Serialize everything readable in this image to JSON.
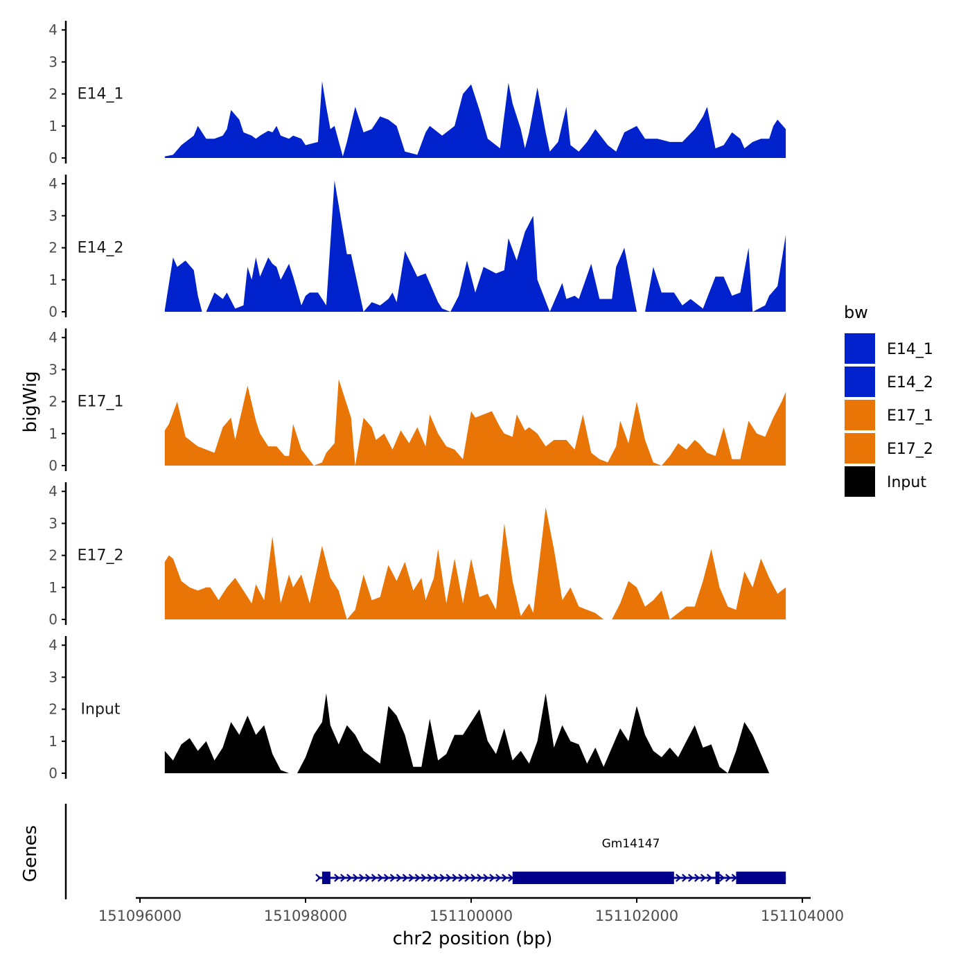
{
  "chart_data": {
    "type": "area",
    "title": "",
    "ylabel": "bigWig",
    "xlabel": "chr2 position (bp)",
    "xlim": [
      151095950,
      151104100
    ],
    "ylim": [
      0,
      4.2
    ],
    "y_ticks": [
      0,
      1,
      2,
      3,
      4
    ],
    "x_ticks": [
      151096000,
      151098000,
      151100000,
      151102000,
      151104000
    ],
    "x_tick_labels": [
      "151096000",
      "151098000",
      "151100000",
      "151102000",
      "151104000"
    ],
    "legend": {
      "title": "bw",
      "position": "right",
      "entries": [
        {
          "label": "E14_1",
          "color": "#0022cc"
        },
        {
          "label": "E14_2",
          "color": "#0022cc"
        },
        {
          "label": "E17_1",
          "color": "#e87505"
        },
        {
          "label": "E17_2",
          "color": "#e87505"
        },
        {
          "label": "Input",
          "color": "#000000"
        }
      ]
    },
    "series": [
      {
        "name": "E14_1",
        "color": "#0022cc",
        "x": [
          151096300,
          151096400,
          151096500,
          151096550,
          151096650,
          151096700,
          151096800,
          151096900,
          151097000,
          151097050,
          151097100,
          151097200,
          151097250,
          151097350,
          151097400,
          151097450,
          151097550,
          151097600,
          151097650,
          151097700,
          151097800,
          151097850,
          151097950,
          151098000,
          151098150,
          151098200,
          151098250,
          151098300,
          151098350,
          151098450,
          151098500,
          151098600,
          151098700,
          151098800,
          151098900,
          151099000,
          151099100,
          151099200,
          151099350,
          151099450,
          151099500,
          151099650,
          151099800,
          151099900,
          151100000,
          151100100,
          151100200,
          151100350,
          151100450,
          151100500,
          151100600,
          151100650,
          151100700,
          151100800,
          151100900,
          151100950,
          151101050,
          151101150,
          151101200,
          151101300,
          151101400,
          151101500,
          151101650,
          151101750,
          151101850,
          151102000,
          151102100,
          151102250,
          151102400,
          151102550,
          151102700,
          151102800,
          151102850,
          151102950,
          151103050,
          151103150,
          151103250,
          151103300,
          151103400,
          151103500,
          151103600,
          151103650,
          151103700,
          151103800
        ],
        "y": [
          0.05,
          0.1,
          0.4,
          0.5,
          0.7,
          1,
          0.6,
          0.6,
          0.7,
          0.9,
          1.5,
          1.2,
          0.8,
          0.7,
          0.6,
          0.7,
          0.85,
          0.8,
          1.0,
          0.7,
          0.6,
          0.7,
          0.6,
          0.4,
          0.5,
          2.4,
          1.6,
          0.9,
          1.0,
          0.05,
          0.5,
          1.6,
          0.8,
          0.9,
          1.3,
          1.2,
          1.0,
          0.2,
          0.1,
          0.8,
          1.0,
          0.7,
          1.0,
          2.0,
          2.3,
          1.5,
          0.6,
          0.3,
          2.35,
          1.7,
          0.9,
          0.3,
          0.8,
          2.2,
          0.8,
          0.2,
          0.5,
          1.6,
          0.4,
          0.2,
          0.5,
          0.9,
          0.4,
          0.2,
          0.8,
          1.0,
          0.6,
          0.6,
          0.5,
          0.5,
          0.9,
          1.3,
          1.6,
          0.3,
          0.4,
          0.8,
          0.6,
          0.3,
          0.5,
          0.6,
          0.6,
          1.0,
          1.2,
          0.9
        ]
      },
      {
        "name": "E14_2",
        "color": "#0022cc",
        "x": [
          151096300,
          151096400,
          151096450,
          151096550,
          151096650,
          151096700,
          151096750,
          151096800,
          151096900,
          151097000,
          151097050,
          151097150,
          151097250,
          151097300,
          151097350,
          151097400,
          151097450,
          151097550,
          151097600,
          151097650,
          151097700,
          151097800,
          151097850,
          151097950,
          151098000,
          151098050,
          151098150,
          151098200,
          151098250,
          151098350,
          151098500,
          151098550,
          151098700,
          151098800,
          151098900,
          151099000,
          151099050,
          151099100,
          151099200,
          151099350,
          151099450,
          151099600,
          151099650,
          151099750,
          151099850,
          151099950,
          151100050,
          151100150,
          151100300,
          151100400,
          151100450,
          151100550,
          151100650,
          151100750,
          151100800,
          151100950,
          151101100,
          151101150,
          151101250,
          151101300,
          151101450,
          151101550,
          151101700,
          151101750,
          151101850,
          151102000,
          151102100,
          151102200,
          151102300,
          151102450,
          151102550,
          151102650,
          151102800,
          151102950,
          151103050,
          151103150,
          151103250,
          151103350,
          151103400,
          151103550,
          151103600,
          151103700,
          151103800
        ],
        "y": [
          0.05,
          1.7,
          1.4,
          1.6,
          1.3,
          0.5,
          0.0,
          0.0,
          0.6,
          0.4,
          0.6,
          0.1,
          0.2,
          1.4,
          1.0,
          1.7,
          1.1,
          1.7,
          1.5,
          1.4,
          1.0,
          1.5,
          1.1,
          0.2,
          0.5,
          0.6,
          0.6,
          0.4,
          0.2,
          4.1,
          1.8,
          1.8,
          0.0,
          0.3,
          0.2,
          0.4,
          0.6,
          0.3,
          1.9,
          1.1,
          1.2,
          0.3,
          0.1,
          0.0,
          0.5,
          1.6,
          0.6,
          1.4,
          1.2,
          1.3,
          2.3,
          1.6,
          2.5,
          3.0,
          1.0,
          0.0,
          0.9,
          0.4,
          0.5,
          0.4,
          1.5,
          0.4,
          0.4,
          1.4,
          2.0,
          0.0,
          0.0,
          1.4,
          0.6,
          0.6,
          0.2,
          0.4,
          0.1,
          1.1,
          1.1,
          0.5,
          0.6,
          2.0,
          0.0,
          0.2,
          0.5,
          0.8,
          2.4
        ]
      },
      {
        "name": "E17_1",
        "color": "#e87505",
        "x": [
          151096300,
          151096350,
          151096450,
          151096550,
          151096650,
          151096700,
          151096800,
          151096900,
          151097000,
          151097100,
          151097150,
          151097300,
          151097400,
          151097450,
          151097550,
          151097650,
          151097750,
          151097800,
          151097850,
          151097950,
          151098100,
          151098200,
          151098250,
          151098350,
          151098400,
          151098550,
          151098600,
          151098700,
          151098800,
          151098850,
          151098950,
          151099050,
          151099150,
          151099250,
          151099350,
          151099450,
          151099500,
          151099600,
          151099700,
          151099800,
          151099900,
          151100000,
          151100050,
          151100150,
          151100250,
          151100350,
          151100400,
          151100500,
          151100550,
          151100650,
          151100700,
          151100800,
          151100900,
          151101000,
          151101050,
          151101150,
          151101250,
          151101350,
          151101450,
          151101550,
          151101650,
          151101750,
          151101800,
          151101900,
          151102000,
          151102100,
          151102200,
          151102300,
          151102400,
          151102500,
          151102600,
          151102700,
          151102750,
          151102850,
          151102950,
          151103050,
          151103150,
          151103250,
          151103350,
          151103450,
          151103550,
          151103650,
          151103750,
          151103800
        ],
        "y": [
          1.1,
          1.3,
          2.0,
          0.9,
          0.7,
          0.6,
          0.5,
          0.4,
          1.2,
          1.5,
          0.8,
          2.5,
          1.4,
          1.0,
          0.6,
          0.6,
          0.3,
          0.3,
          1.3,
          0.5,
          0.0,
          0.1,
          0.4,
          0.7,
          2.7,
          1.5,
          0.0,
          1.5,
          1.2,
          0.8,
          1.0,
          0.5,
          1.1,
          0.7,
          1.2,
          0.6,
          1.6,
          1.0,
          0.6,
          0.5,
          0.2,
          1.7,
          1.5,
          1.6,
          1.7,
          1.2,
          1.0,
          0.9,
          1.6,
          1.1,
          1.2,
          1.0,
          0.6,
          0.8,
          0.8,
          0.8,
          0.5,
          1.6,
          0.4,
          0.2,
          0.1,
          0.6,
          1.4,
          0.7,
          2.0,
          0.8,
          0.1,
          0.0,
          0.3,
          0.7,
          0.5,
          0.8,
          0.7,
          0.4,
          0.3,
          1.2,
          0.2,
          0.2,
          1.4,
          1.0,
          0.9,
          1.5,
          2.0,
          2.3
        ]
      },
      {
        "name": "E17_2",
        "color": "#e87505",
        "x": [
          151096300,
          151096350,
          151096400,
          151096500,
          151096600,
          151096700,
          151096800,
          151096850,
          151096950,
          151097050,
          151097150,
          151097250,
          151097350,
          151097400,
          151097500,
          151097600,
          151097700,
          151097800,
          151097850,
          151097950,
          151098050,
          151098200,
          151098300,
          151098400,
          151098500,
          151098600,
          151098700,
          151098800,
          151098900,
          151099000,
          151099100,
          151099200,
          151099300,
          151099400,
          151099450,
          151099550,
          151099600,
          151099700,
          151099800,
          151099900,
          151100000,
          151100100,
          151100200,
          151100300,
          151100400,
          151100500,
          151100600,
          151100700,
          151100750,
          151100900,
          151101000,
          151101100,
          151101200,
          151101300,
          151101400,
          151101500,
          151101600,
          151101700,
          151101800,
          151101900,
          151102000,
          151102100,
          151102200,
          151102300,
          151102400,
          151102500,
          151102600,
          151102700,
          151102800,
          151102900,
          151103000,
          151103100,
          151103200,
          151103300,
          151103400,
          151103500,
          151103600,
          151103700,
          151103800
        ],
        "y": [
          1.8,
          2.0,
          1.9,
          1.2,
          1.0,
          0.9,
          1.0,
          1.0,
          0.6,
          1.0,
          1.3,
          0.9,
          0.5,
          1.1,
          0.6,
          2.6,
          0.5,
          1.4,
          1.0,
          1.4,
          0.5,
          2.3,
          1.3,
          0.9,
          0.0,
          0.3,
          1.4,
          0.6,
          0.7,
          1.7,
          1.2,
          1.8,
          0.9,
          1.3,
          0.6,
          1.3,
          2.2,
          0.5,
          1.9,
          0.5,
          1.9,
          0.7,
          0.8,
          0.3,
          3.0,
          1.2,
          0.1,
          0.5,
          0.2,
          3.5,
          2.2,
          0.6,
          1.0,
          0.4,
          0.3,
          0.2,
          0.0,
          0.0,
          0.5,
          1.2,
          1.0,
          0.4,
          0.6,
          0.9,
          0.0,
          0.2,
          0.4,
          0.4,
          1.2,
          2.2,
          1.0,
          0.4,
          0.3,
          1.5,
          1.0,
          1.9,
          1.3,
          0.8,
          1.0
        ]
      },
      {
        "name": "Input",
        "color": "#000000",
        "x": [
          151096300,
          151096400,
          151096500,
          151096600,
          151096700,
          151096800,
          151096900,
          151097000,
          151097100,
          151097200,
          151097300,
          151097400,
          151097500,
          151097600,
          151097700,
          151097800,
          151097900,
          151098000,
          151098100,
          151098200,
          151098250,
          151098300,
          151098400,
          151098500,
          151098600,
          151098700,
          151098800,
          151098900,
          151099000,
          151099100,
          151099200,
          151099300,
          151099400,
          151099500,
          151099600,
          151099700,
          151099800,
          151099900,
          151100000,
          151100100,
          151100200,
          151100300,
          151100400,
          151100500,
          151100600,
          151100700,
          151100800,
          151100900,
          151101000,
          151101100,
          151101200,
          151101300,
          151101400,
          151101500,
          151101600,
          151101700,
          151101800,
          151101900,
          151102000,
          151102100,
          151102200,
          151102300,
          151102400,
          151102500,
          151102600,
          151102700,
          151102800,
          151102900,
          151103000,
          151103100,
          151103200,
          151103300,
          151103400,
          151103500,
          151103600,
          151103700,
          151103800
        ],
        "y": [
          0.7,
          0.4,
          0.9,
          1.1,
          0.7,
          1.0,
          0.4,
          0.8,
          1.6,
          1.2,
          1.8,
          1.2,
          1.5,
          0.6,
          0.1,
          0.0,
          0.0,
          0.5,
          1.2,
          1.6,
          2.5,
          1.5,
          0.9,
          1.5,
          1.2,
          0.7,
          0.5,
          0.3,
          2.1,
          1.8,
          1.2,
          0.2,
          0.2,
          1.7,
          0.4,
          0.6,
          1.2,
          1.2,
          1.6,
          2.0,
          1.0,
          0.6,
          1.4,
          0.4,
          0.7,
          0.3,
          1.0,
          2.5,
          0.8,
          1.5,
          1.0,
          0.9,
          0.3,
          0.8,
          0.2,
          0.8,
          1.4,
          1.0,
          2.1,
          1.2,
          0.7,
          0.5,
          0.8,
          0.5,
          1.0,
          1.5,
          0.8,
          0.9,
          0.2,
          0.0,
          0.7,
          1.6,
          1.2,
          0.6,
          0.0,
          0.0,
          0.0
        ]
      }
    ],
    "genes": [
      {
        "name": "Gm14147",
        "start": 151098150,
        "end": 151103800,
        "strand": "+",
        "exons": [
          [
            151098200,
            151098300
          ],
          [
            151100500,
            151102450
          ],
          [
            151102950,
            151103000
          ],
          [
            151103200,
            151103800
          ]
        ]
      }
    ]
  }
}
